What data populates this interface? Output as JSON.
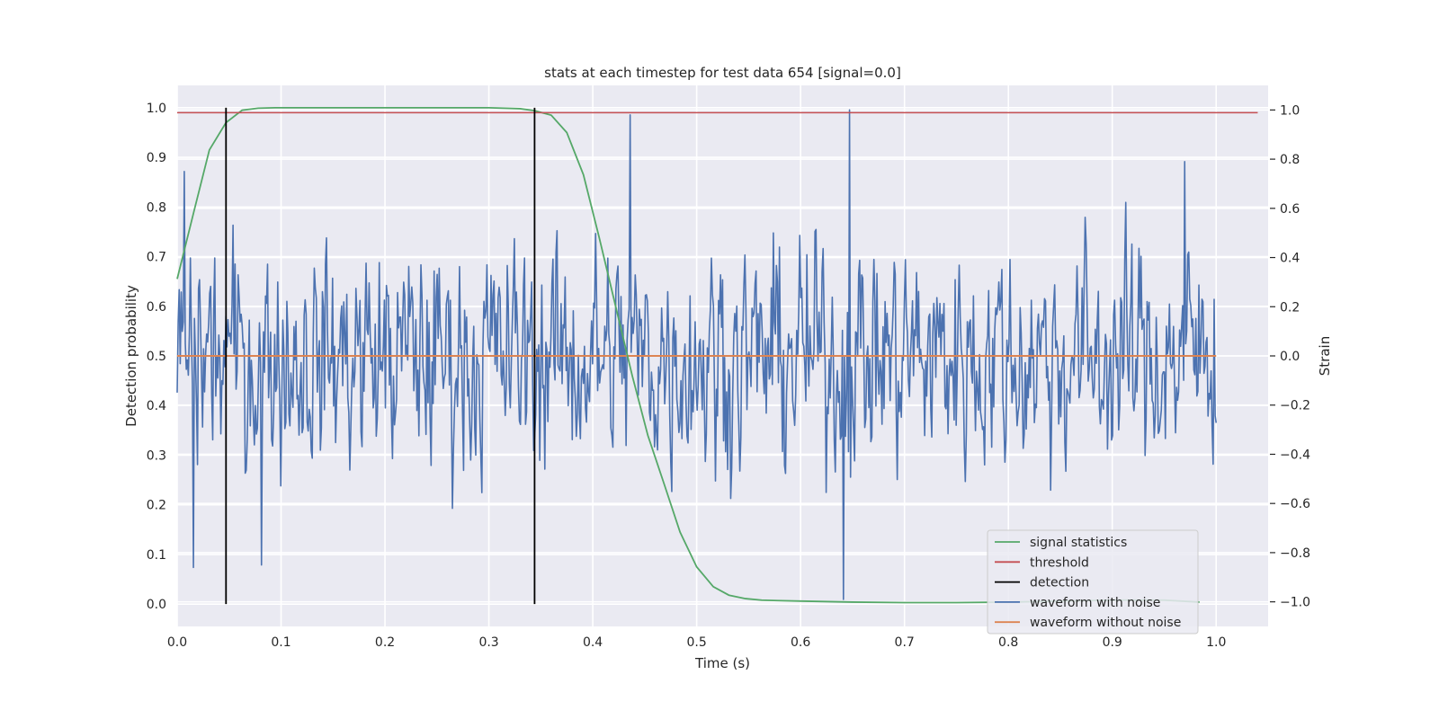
{
  "chart_data": {
    "type": "line",
    "title": "stats at each timestep for test data 654 [signal=0.0]",
    "xlabel": "Time (s)",
    "ylabel": "Detection probability",
    "ylabel_right": "Strain",
    "xlim": [
      0.0,
      1.05
    ],
    "ylim": [
      -0.045,
      1.045
    ],
    "ylim_right": [
      -1.1,
      1.1
    ],
    "x_ticks": [
      0.0,
      0.1,
      0.2,
      0.3,
      0.4,
      0.5,
      0.6,
      0.7,
      0.8,
      0.9,
      1.0
    ],
    "x_tick_labels": [
      "0.0",
      "0.1",
      "0.2",
      "0.3",
      "0.4",
      "0.5",
      "0.6",
      "0.7",
      "0.8",
      "0.9",
      "1.0"
    ],
    "y_ticks": [
      0.0,
      0.1,
      0.2,
      0.3,
      0.4,
      0.5,
      0.6,
      0.7,
      0.8,
      0.9,
      1.0
    ],
    "y_tick_labels": [
      "0.0",
      "0.1",
      "0.2",
      "0.3",
      "0.4",
      "0.5",
      "0.6",
      "0.7",
      "0.8",
      "0.9",
      "1.0"
    ],
    "y_right_ticks": [
      -1.0,
      -0.8,
      -0.6,
      -0.4,
      -0.2,
      0.0,
      0.2,
      0.4,
      0.6,
      0.8,
      1.0
    ],
    "y_right_tick_labels": [
      "−1.0",
      "−0.8",
      "−0.6",
      "−0.4",
      "−0.2",
      "0.0",
      "0.2",
      "0.4",
      "0.6",
      "0.8",
      "1.0"
    ],
    "grid": true,
    "legend_position": "lower-right",
    "colors": {
      "signal_statistics": "#55a868",
      "threshold": "#c44e52",
      "detection": "#000000",
      "waveform_with_noise": "#4c72b0",
      "waveform_without_noise": "#dd8452",
      "plot_background": "#eaeaf2"
    },
    "series": [
      {
        "name": "signal statistics",
        "axis": "left",
        "x": [
          0.0,
          0.016,
          0.031,
          0.047,
          0.0625,
          0.078,
          0.094,
          0.2,
          0.3,
          0.33,
          0.344,
          0.36,
          0.375,
          0.391,
          0.406,
          0.422,
          0.438,
          0.453,
          0.469,
          0.484,
          0.5,
          0.516,
          0.531,
          0.547,
          0.5625,
          0.578,
          0.6,
          0.65,
          0.7,
          0.75,
          0.8,
          0.85,
          0.9,
          0.95,
          0.984
        ],
        "y": [
          0.655,
          0.79,
          0.915,
          0.97,
          0.995,
          0.999,
          1.0,
          1.0,
          1.0,
          0.998,
          0.994,
          0.985,
          0.95,
          0.865,
          0.74,
          0.6,
          0.46,
          0.34,
          0.24,
          0.145,
          0.075,
          0.035,
          0.018,
          0.011,
          0.008,
          0.007,
          0.006,
          0.004,
          0.003,
          0.003,
          0.004,
          0.006,
          0.008,
          0.008,
          0.004
        ]
      },
      {
        "name": "threshold",
        "axis": "left",
        "x": [
          0.0,
          1.04
        ],
        "y": [
          0.99,
          0.99
        ]
      },
      {
        "name": "detection",
        "axis": "left",
        "x": [
          0.047,
          0.344
        ],
        "y_range": [
          0.0,
          1.0
        ]
      },
      {
        "name": "waveform with noise",
        "axis": "right",
        "x_range": [
          0.0,
          1.0
        ],
        "points": 1024,
        "y_stats": {
          "min": -0.99,
          "max": 1.0,
          "mean": 0.0,
          "std": 0.3
        },
        "peaks": [
          {
            "x": 0.007,
            "y": 0.75
          },
          {
            "x": 0.016,
            "y": -0.86
          },
          {
            "x": 0.081,
            "y": -0.85
          },
          {
            "x": 0.436,
            "y": 0.98
          },
          {
            "x": 0.641,
            "y": -0.99
          },
          {
            "x": 0.647,
            "y": 1.0
          },
          {
            "x": 0.97,
            "y": 0.79
          },
          {
            "x": 0.998,
            "y": 0.23
          }
        ]
      },
      {
        "name": "waveform without noise",
        "axis": "right",
        "x": [
          0.0,
          1.0
        ],
        "y": [
          0.0,
          0.0
        ]
      }
    ]
  }
}
